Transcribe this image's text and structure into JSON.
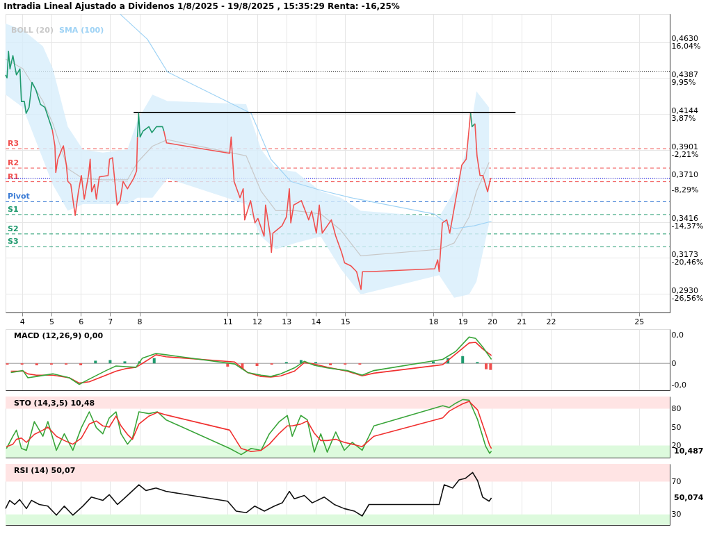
{
  "chart_data": [
    {
      "type": "line",
      "title": "Intradia Lineal Ajustado a Dividenos 1/8/2025 - 19/8/2025 , 15:35:29 Renta: -16,25%",
      "xlim": [
        3.44,
        26.05
      ],
      "xticks": [
        4,
        5,
        6,
        7,
        8,
        11,
        12,
        13,
        14,
        15,
        18,
        19,
        20,
        21,
        22,
        25
      ],
      "ylim": [
        0.2804,
        0.4822
      ],
      "yticks": [
        {
          "value": 0.463,
          "label": "0,4630"
        },
        {
          "value": 0.4387,
          "label": "0,4387"
        },
        {
          "value": 0.4144,
          "label": "0,4144"
        },
        {
          "value": 0.3901,
          "label": "0,3901"
        },
        {
          "value": 0.371,
          "label": "0,3710"
        },
        {
          "value": 0.3416,
          "label": "0,3416"
        },
        {
          "value": 0.3173,
          "label": "0,3173"
        },
        {
          "value": 0.293,
          "label": "0,2930"
        }
      ],
      "y2lim": [
        -29.72,
        20.85
      ],
      "y2ticks": [
        {
          "value": 16.04,
          "label": "16,04%"
        },
        {
          "value": 9.95,
          "label": "9,95%"
        },
        {
          "value": 3.87,
          "label": "3,87%"
        },
        {
          "value": -2.21,
          "label": "-2,21%"
        },
        {
          "value": -8.29,
          "label": "-8,29%"
        },
        {
          "value": -14.37,
          "label": "-14,37%"
        },
        {
          "value": -20.46,
          "label": "-20,46%"
        },
        {
          "value": -26.56,
          "label": "-26,56%"
        }
      ],
      "grid": true,
      "legend": false,
      "series": [
        {
          "name": "BOLL (20)",
          "type": "line",
          "color": "#c8c8c8",
          "x": [
            3.44,
            4.03,
            4.71,
            5.05,
            5.56,
            6.07,
            6.75,
            7.59,
            7.93,
            8.44,
            8.95,
            11.63,
            12.14,
            12.64,
            13.32,
            14.17,
            14.85,
            15.53,
            18.2,
            18.71,
            19.22,
            19.47,
            19.9
          ],
          "values": [
            0.4517,
            0.4451,
            0.4233,
            0.4081,
            0.3776,
            0.371,
            0.3701,
            0.3701,
            0.3819,
            0.3928,
            0.3972,
            0.3863,
            0.3623,
            0.3492,
            0.3492,
            0.347,
            0.3361,
            0.3187,
            0.3231,
            0.3274,
            0.3449,
            0.3623,
            0.3819
          ],
          "lower": [
            0.4277,
            0.419,
            0.3841,
            0.3667,
            0.3492,
            0.3536,
            0.3536,
            0.3536,
            0.3579,
            0.3579,
            0.371,
            0.3536,
            0.3318,
            0.3231,
            0.3274,
            0.3318,
            0.31,
            0.2926,
            0.3056,
            0.2904,
            0.2926,
            0.3013,
            0.3405
          ],
          "upper": [
            0.4756,
            0.4713,
            0.4604,
            0.4451,
            0.4059,
            0.3906,
            0.3885,
            0.3906,
            0.4103,
            0.4277,
            0.4233,
            0.4212,
            0.3906,
            0.3776,
            0.3754,
            0.3623,
            0.3579,
            0.3492,
            0.3449,
            0.3623,
            0.3972,
            0.4299,
            0.419
          ]
        },
        {
          "name": "SMA (100)",
          "type": "line",
          "color": "#9fd3f5",
          "x": [
            7.34,
            8.27,
            8.95,
            11.8,
            12.47,
            13.15,
            14.17,
            15.19,
            18.03,
            18.71,
            19.39,
            19.98
          ],
          "values": [
            0.482,
            0.465,
            0.443,
            0.415,
            0.384,
            0.369,
            0.363,
            0.358,
            0.347,
            0.337,
            0.339,
            0.342
          ]
        },
        {
          "type": "line",
          "color": "#000000",
          "x": [
            7.8,
            20.8
          ],
          "values": [
            0.4155,
            0.4155
          ]
        },
        {
          "type": "line",
          "color": "#1f9a6e",
          "x": [
            3.44,
            3.49,
            3.54,
            3.59,
            3.69,
            3.81,
            3.93,
            3.98,
            4.08,
            4.14,
            4.24,
            4.34,
            4.47,
            4.63,
            4.78,
            4.93,
            5.03
          ],
          "values": [
            0.441,
            0.439,
            0.457,
            0.445,
            0.454,
            0.441,
            0.445,
            0.423,
            0.423,
            0.415,
            0.419,
            0.436,
            0.431,
            0.421,
            0.419,
            0.41,
            0.404
          ]
        },
        {
          "type": "line",
          "color": "#f0504f",
          "x": [
            5.03,
            5.12,
            5.15,
            5.22,
            5.36,
            5.41,
            5.51,
            5.56,
            5.66,
            5.76,
            5.81,
            5.92,
            6.02,
            6.12,
            6.27,
            6.32,
            6.37,
            6.47,
            6.53,
            6.63,
            6.93,
            6.98,
            7.08,
            7.24,
            7.34,
            7.44,
            7.59,
            7.8,
            7.9,
            7.93
          ],
          "values": [
            0.404,
            0.393,
            0.375,
            0.384,
            0.391,
            0.393,
            0.38,
            0.369,
            0.367,
            0.353,
            0.346,
            0.362,
            0.373,
            0.357,
            0.374,
            0.384,
            0.362,
            0.367,
            0.357,
            0.372,
            0.373,
            0.384,
            0.385,
            0.353,
            0.356,
            0.369,
            0.364,
            0.371,
            0.376,
            0.399
          ]
        },
        {
          "type": "line",
          "color": "#1f9a6e",
          "x": [
            7.93,
            7.97,
            8.02,
            8.12,
            8.32,
            8.42,
            8.58,
            8.78,
            8.83
          ],
          "values": [
            0.399,
            0.415,
            0.399,
            0.403,
            0.406,
            0.402,
            0.406,
            0.406,
            0.403
          ]
        },
        {
          "type": "line",
          "color": "#f0504f",
          "x": [
            8.83,
            8.92,
            11.07,
            11.12,
            11.22,
            11.42,
            11.53,
            11.58,
            11.78,
            11.93,
            12.03,
            12.24,
            12.29,
            12.44,
            12.49,
            12.54,
            12.85,
            13.0,
            13.1,
            13.15,
            13.25,
            13.51,
            13.76,
            13.86,
            14.02,
            14.12,
            14.22,
            14.53,
            14.68,
            14.88,
            14.98,
            15.19,
            15.39,
            15.54,
            15.59,
            15.8,
            18.05,
            18.15,
            18.2,
            18.31,
            18.46,
            18.56,
            18.66,
            18.81,
            18.97,
            19.12,
            19.27
          ],
          "values": [
            0.403,
            0.395,
            0.388,
            0.399,
            0.369,
            0.358,
            0.364,
            0.343,
            0.356,
            0.341,
            0.344,
            0.332,
            0.353,
            0.334,
            0.321,
            0.334,
            0.339,
            0.345,
            0.364,
            0.341,
            0.353,
            0.356,
            0.343,
            0.349,
            0.334,
            0.353,
            0.334,
            0.343,
            0.332,
            0.321,
            0.314,
            0.312,
            0.308,
            0.296,
            0.308,
            0.308,
            0.31,
            0.316,
            0.308,
            0.341,
            0.343,
            0.334,
            0.345,
            0.362,
            0.38,
            0.384,
            0.415
          ]
        },
        {
          "type": "line",
          "color": "#1f9a6e",
          "x": [
            19.27,
            19.32,
            19.42
          ],
          "values": [
            0.415,
            0.406,
            0.408
          ]
        },
        {
          "type": "line",
          "color": "#f0504f",
          "x": [
            19.42,
            19.49,
            19.59,
            19.69,
            19.85,
            19.95,
            19.98
          ],
          "values": [
            0.408,
            0.386,
            0.373,
            0.373,
            0.362,
            0.371,
            0.371
          ]
        }
      ],
      "ref_lines": [
        {
          "axis": "y",
          "value": 0.4434,
          "color": "#000000",
          "line_style": "dotted"
        },
        {
          "axis": "y",
          "value": 0.3911,
          "label": "R3",
          "color": "#f0504f",
          "line_style": "dashed"
        },
        {
          "axis": "y",
          "value": 0.378,
          "label": "R2",
          "color": "#f0504f",
          "line_style": "dashed"
        },
        {
          "axis": "y",
          "value": 0.3688,
          "label": "R1",
          "color": "#f0504f",
          "line_style": "dashed"
        },
        {
          "axis": "y",
          "value": 0.371,
          "color": "#0000ff",
          "line_style": "dotted"
        },
        {
          "axis": "y",
          "value": 0.3553,
          "label": "Pivot",
          "color": "#3a7bd5",
          "line_style": "dashed"
        },
        {
          "axis": "y",
          "value": 0.3466,
          "label": "S1",
          "color": "#1f9a6e",
          "line_style": "dashed"
        },
        {
          "axis": "y",
          "value": 0.3335,
          "label": "S2",
          "color": "#1f9a6e",
          "line_style": "dashed"
        },
        {
          "axis": "y",
          "value": 0.3248,
          "label": "S3",
          "color": "#1f9a6e",
          "line_style": "dashed"
        }
      ]
    },
    {
      "type": "line",
      "title": "MACD (12,26,9)   0,00",
      "xlim": [
        3.44,
        26.05
      ],
      "ylim": [
        -0.0041,
        0.0052
      ],
      "yticks": [
        {
          "value": 0.0043,
          "label": "0,0"
        },
        0,
        {
          "value": -0.0033,
          "label": "-0,0"
        }
      ],
      "xticks": [
        4,
        5,
        6,
        7,
        8,
        11,
        12,
        13,
        14,
        15,
        18,
        19,
        20,
        21,
        22,
        25
      ],
      "tick_labels": "y",
      "grid": "x",
      "legend": false,
      "series": [
        {
          "type": "bar",
          "x": [
            3.5,
            4,
            4.5,
            5,
            5.5,
            6,
            6.5,
            7,
            7.5,
            8,
            8.5,
            11,
            11.5,
            12,
            12.5,
            13,
            13.5,
            14,
            14.5,
            15,
            15.5,
            18,
            18.5,
            19,
            19.5,
            19.8,
            19.95
          ],
          "values": [
            -0.0002,
            -0.0002,
            -0.0003,
            -0.0002,
            -0.0002,
            -0.0003,
            0.0004,
            0.0005,
            0.0003,
            0.0003,
            0.0008,
            -0.0005,
            -0.0009,
            -0.0004,
            -0.0002,
            0.0002,
            0.0005,
            0.0002,
            -0.0003,
            -0.0002,
            -0.0002,
            0.0003,
            0.0008,
            0.0011,
            0.0002,
            -0.0009,
            -0.001
          ],
          "colors": [
            "#f0504f",
            "#f0504f",
            "#f0504f",
            "#f0504f",
            "#f0504f",
            "#f0504f",
            "#1f9a6e",
            "#1f9a6e",
            "#1f9a6e",
            "#1f9a6e",
            "#1f9a6e",
            "#f0504f",
            "#f0504f",
            "#f0504f",
            "#f0504f",
            "#1f9a6e",
            "#1f9a6e",
            "#1f9a6e",
            "#f0504f",
            "#f0504f",
            "#f0504f",
            "#1f9a6e",
            "#1f9a6e",
            "#1f9a6e",
            "#1f9a6e",
            "#f0504f",
            "#f0504f"
          ]
        },
        {
          "type": "line",
          "color": "#f0302f",
          "x": [
            3.62,
            4.03,
            4.2,
            4.49,
            5.05,
            5.61,
            5.95,
            6.29,
            6.86,
            7.2,
            7.54,
            7.88,
            8.1,
            8.56,
            8.9,
            11.24,
            11.68,
            12.14,
            12.47,
            12.81,
            13.27,
            13.61,
            13.95,
            14.39,
            15.07,
            15.58,
            15.98,
            18.32,
            18.76,
            19.22,
            19.44,
            19.68,
            19.98
          ],
          "values": [
            -0.0012,
            -0.0012,
            -0.0016,
            -0.0018,
            -0.0018,
            -0.0022,
            -0.003,
            -0.0028,
            -0.0018,
            -0.0012,
            -0.0008,
            -0.0006,
            0.0,
            0.0013,
            0.001,
            0.0002,
            -0.0014,
            -0.002,
            -0.0021,
            -0.0019,
            -0.0012,
            0.0001,
            -0.0001,
            -0.0006,
            -0.0012,
            -0.0019,
            -0.0015,
            -0.0002,
            0.0014,
            0.0031,
            0.0032,
            0.0022,
            0.0012
          ]
        },
        {
          "type": "line",
          "color": "#3aa53a",
          "x": [
            3.62,
            4.03,
            4.2,
            4.49,
            5.05,
            5.61,
            5.95,
            6.29,
            6.86,
            7.2,
            7.54,
            7.88,
            8.1,
            8.56,
            8.9,
            11.24,
            11.68,
            12.14,
            12.47,
            12.81,
            13.27,
            13.61,
            13.95,
            14.39,
            15.07,
            15.58,
            15.98,
            18.32,
            18.76,
            19.22,
            19.44,
            19.68,
            19.98
          ],
          "values": [
            -0.0014,
            -0.0011,
            -0.0022,
            -0.002,
            -0.0016,
            -0.0022,
            -0.0032,
            -0.0024,
            -0.0011,
            -0.0004,
            -0.0005,
            -0.0006,
            0.0008,
            0.0015,
            0.0013,
            -0.0001,
            -0.0014,
            -0.0018,
            -0.002,
            -0.0016,
            -0.0007,
            0.0003,
            -0.0003,
            -0.0007,
            -0.0011,
            -0.0018,
            -0.0011,
            0.0006,
            0.0018,
            0.004,
            0.0038,
            0.0025,
            0.0006
          ]
        }
      ],
      "ref_lines": [
        {
          "axis": "y",
          "value": 0,
          "color": "#999999",
          "line_style": "solid"
        }
      ]
    },
    {
      "type": "line",
      "title": "STO (14,3,5)   10,48",
      "xlim": [
        3.44,
        26.05
      ],
      "ylim": [
        0,
        100
      ],
      "xticks": [
        4,
        5,
        6,
        7,
        8,
        11,
        12,
        13,
        14,
        15,
        18,
        19,
        20,
        21,
        22,
        25
      ],
      "yticks": [
        20,
        50,
        80
      ],
      "annotations": [
        "10,487"
      ],
      "tick_labels": "y",
      "grid": "x",
      "legend": false,
      "bands": [
        {
          "axis": "y",
          "from": 80,
          "to": 100,
          "color": "#ffe4e4"
        },
        {
          "axis": "y",
          "from": 0,
          "to": 20,
          "color": "#ddfadd"
        }
      ],
      "series": [
        {
          "type": "line",
          "color": "#3aa53a",
          "x": [
            3.47,
            3.69,
            3.81,
            3.98,
            4.15,
            4.42,
            4.71,
            4.88,
            5.17,
            5.44,
            5.73,
            6.02,
            6.29,
            6.53,
            6.75,
            6.97,
            7.2,
            7.37,
            7.59,
            7.76,
            7.98,
            8.32,
            8.61,
            8.9,
            11.07,
            11.46,
            11.8,
            12.14,
            12.42,
            12.76,
            13.03,
            13.2,
            13.49,
            13.71,
            13.95,
            14.17,
            14.39,
            14.68,
            14.97,
            15.24,
            15.58,
            15.98,
            18.32,
            18.54,
            18.76,
            19.0,
            19.22,
            19.51,
            19.78,
            19.92,
            19.98
          ],
          "values": [
            15,
            35,
            45,
            15,
            12,
            59,
            35,
            59,
            12,
            39,
            12,
            49,
            75,
            49,
            39,
            65,
            75,
            39,
            22,
            32,
            75,
            72,
            75,
            62,
            15,
            5,
            15,
            12,
            39,
            59,
            69,
            35,
            69,
            62,
            9,
            39,
            9,
            42,
            12,
            25,
            12,
            52,
            85,
            82,
            89,
            95,
            94,
            62,
            19,
            7,
            10.487
          ]
        },
        {
          "type": "line",
          "color": "#f0302f",
          "x": [
            3.47,
            3.69,
            3.81,
            3.98,
            4.15,
            4.42,
            4.71,
            4.88,
            5.17,
            5.44,
            5.73,
            6.02,
            6.29,
            6.53,
            6.75,
            6.97,
            7.2,
            7.37,
            7.59,
            7.76,
            7.98,
            8.32,
            8.61,
            8.9,
            11.07,
            11.46,
            11.8,
            12.14,
            12.42,
            12.76,
            13.03,
            13.2,
            13.49,
            13.71,
            13.95,
            14.17,
            14.39,
            14.68,
            14.97,
            15.24,
            15.58,
            15.98,
            18.32,
            18.54,
            18.76,
            19.0,
            19.22,
            19.51,
            19.78,
            19.92,
            19.98
          ],
          "values": [
            18,
            22,
            30,
            32,
            25,
            38,
            45,
            50,
            35,
            28,
            22,
            32,
            55,
            60,
            52,
            50,
            68,
            52,
            38,
            30,
            55,
            68,
            74,
            70,
            45,
            15,
            10,
            12,
            22,
            40,
            52,
            52,
            55,
            60,
            40,
            28,
            28,
            30,
            25,
            22,
            18,
            35,
            65,
            76,
            82,
            88,
            92,
            78,
            40,
            20,
            15
          ]
        }
      ]
    },
    {
      "type": "line",
      "title": "RSI (14)   50,07",
      "xlim": [
        3.44,
        26.05
      ],
      "ylim": [
        17,
        91.5
      ],
      "xticks": [
        4,
        5,
        6,
        7,
        8,
        11,
        12,
        13,
        14,
        15,
        18,
        19,
        20,
        21,
        22,
        25
      ],
      "yticks": [
        30,
        70
      ],
      "annotations": [
        "50,074"
      ],
      "tick_labels": "y",
      "grid": "x",
      "legend": false,
      "bands": [
        {
          "axis": "y",
          "from": 70,
          "to": 91.5,
          "color": "#ffe4e4"
        },
        {
          "axis": "y",
          "from": 17,
          "to": 30,
          "color": "#ddfadd"
        }
      ],
      "series": [
        {
          "type": "line",
          "color": "#111111",
          "x": [
            3.44,
            3.58,
            3.75,
            3.92,
            4.15,
            4.32,
            4.59,
            4.88,
            5.17,
            5.44,
            5.73,
            6.07,
            6.36,
            6.75,
            6.97,
            7.25,
            7.47,
            7.98,
            8.22,
            8.56,
            8.9,
            11.0,
            11.29,
            11.63,
            11.92,
            12.25,
            12.59,
            12.86,
            13.1,
            13.27,
            13.61,
            13.88,
            14.29,
            14.63,
            14.97,
            15.31,
            15.58,
            15.81,
            18.2,
            18.37,
            18.66,
            18.88,
            19.1,
            19.34,
            19.51,
            19.68,
            19.9,
            19.98
          ],
          "values": [
            37,
            47,
            42,
            48,
            37,
            47,
            42,
            40,
            29,
            40,
            29,
            40,
            51,
            47,
            54,
            42,
            49,
            66,
            59,
            62,
            58,
            46,
            34,
            32,
            40,
            34,
            40,
            44,
            58,
            49,
            53,
            44,
            51,
            42,
            37,
            34,
            28,
            42,
            42,
            66,
            62,
            72,
            74,
            81,
            71,
            51,
            46,
            50.074
          ]
        }
      ]
    }
  ]
}
